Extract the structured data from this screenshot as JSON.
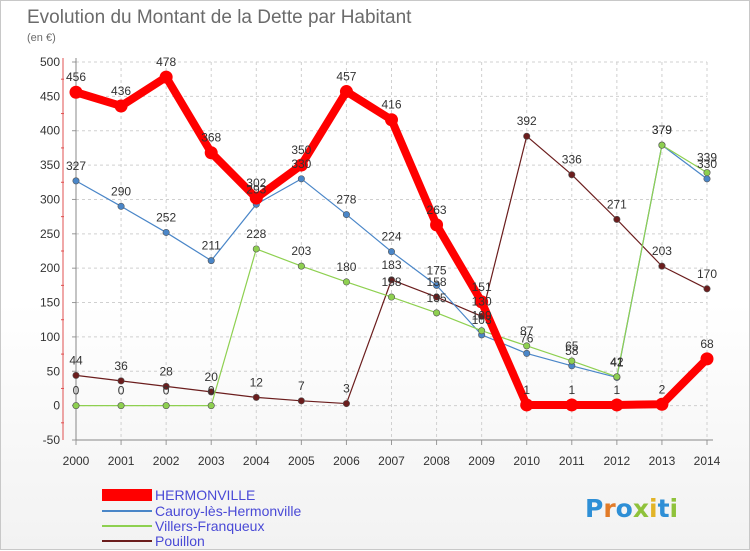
{
  "chart_data": {
    "type": "line",
    "title": "Evolution du Montant de la Dette par Habitant",
    "subtitle": "(en €)",
    "x": [
      "2000",
      "2001",
      "2002",
      "2003",
      "2004",
      "2005",
      "2006",
      "2007",
      "2008",
      "2009",
      "2010",
      "2011",
      "2012",
      "2013",
      "2014"
    ],
    "ylim": [
      -50,
      500
    ],
    "yticks": [
      -50,
      0,
      50,
      100,
      150,
      200,
      250,
      300,
      350,
      400,
      450,
      500
    ],
    "grid": true,
    "legend_position": "bottom-left",
    "series": [
      {
        "name": "HERMONVILLE",
        "color": "#ff0000",
        "values": [
          456,
          436,
          478,
          368,
          302,
          350,
          457,
          416,
          263,
          151,
          1,
          1,
          1,
          2,
          68
        ]
      },
      {
        "name": "Cauroy-lès-Hermonville",
        "color": "#4a86c8",
        "values": [
          327,
          290,
          252,
          211,
          293,
          330,
          278,
          224,
          175,
          103,
          76,
          58,
          41,
          379,
          330
        ]
      },
      {
        "name": "Villers-Franqueux",
        "color": "#8ed050",
        "values": [
          0,
          0,
          0,
          0,
          228,
          203,
          180,
          158,
          135,
          109,
          87,
          65,
          42,
          379,
          339
        ]
      },
      {
        "name": "Pouillon",
        "color": "#6b1d1d",
        "values": [
          44,
          36,
          28,
          20,
          12,
          7,
          3,
          183,
          158,
          130,
          392,
          336,
          271,
          203,
          170
        ]
      }
    ]
  },
  "branding": {
    "logo_letters": [
      "P",
      "r",
      "o",
      "x",
      "i",
      "t",
      "i"
    ]
  }
}
